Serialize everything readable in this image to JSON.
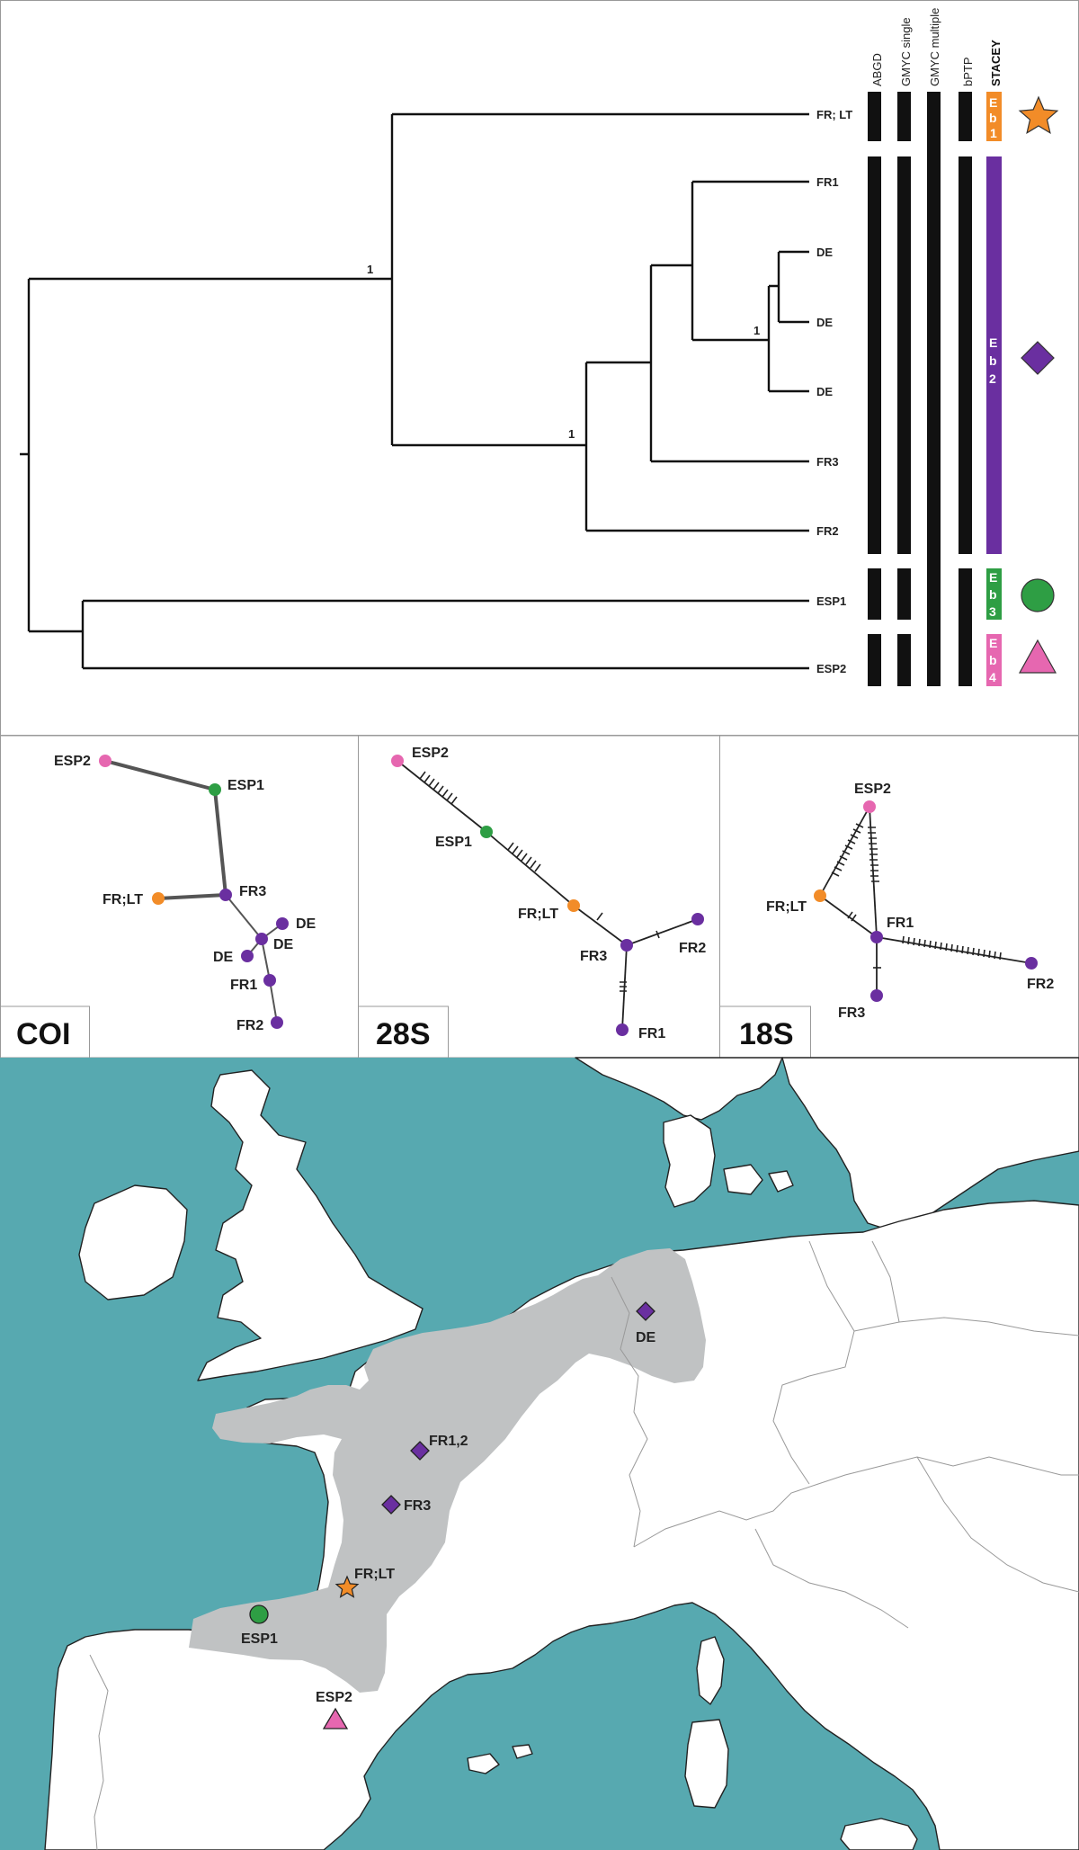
{
  "colors": {
    "eb1": "#f28c28",
    "eb2": "#6a2fa0",
    "eb3": "#2e9e44",
    "eb4": "#e667b0",
    "sea": "#57a9b0",
    "range": "#c0c2c3",
    "black": "#111111"
  },
  "tree": {
    "tips": [
      "FR; LT",
      "FR1",
      "DE",
      "DE",
      "DE",
      "FR3",
      "FR2",
      "ESP1",
      "ESP2"
    ],
    "support": [
      "1",
      "1",
      "1"
    ]
  },
  "methods": [
    "ABGD",
    "GMYC single",
    "GMYC multiple",
    "bPTP",
    "STACEY"
  ],
  "species": [
    {
      "id": "Eb1",
      "letters": [
        "E",
        "b",
        "1"
      ],
      "symbol": "star-icon"
    },
    {
      "id": "Eb2",
      "letters": [
        "E",
        "b",
        "2"
      ],
      "symbol": "diamond-icon"
    },
    {
      "id": "Eb3",
      "letters": [
        "E",
        "b",
        "3"
      ],
      "symbol": "circle-icon"
    },
    {
      "id": "Eb4",
      "letters": [
        "E",
        "b",
        "4"
      ],
      "symbol": "triangle-icon"
    }
  ],
  "networks": [
    {
      "title": "COI",
      "labels": [
        "ESP2",
        "ESP1",
        "FR;LT",
        "FR3",
        "DE",
        "DE",
        "DE",
        "FR1",
        "FR2"
      ]
    },
    {
      "title": "28S",
      "labels": [
        "ESP2",
        "ESP1",
        "FR;LT",
        "FR3",
        "FR2",
        "FR1"
      ]
    },
    {
      "title": "18S",
      "labels": [
        "ESP2",
        "FR;LT",
        "FR1",
        "FR2",
        "FR3"
      ]
    }
  ],
  "map": {
    "labels": [
      "DE",
      "FR1,2",
      "FR3",
      "FR;LT",
      "ESP1",
      "ESP2"
    ]
  }
}
